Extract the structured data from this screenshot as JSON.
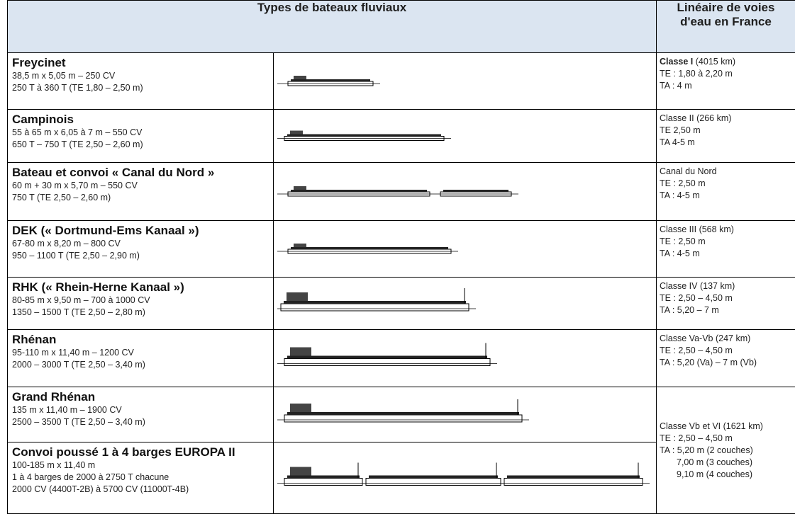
{
  "header": {
    "types": "Types de bateaux fluviaux",
    "lineaire": [
      "Linéaire de voies",
      "d'eau en France"
    ]
  },
  "rows": [
    {
      "name": "Freycinet",
      "lines": [
        "38,5 m x 5,05 m – 250 CV",
        "250 T à 360 T (TE 1,80 – 2,50 m)"
      ],
      "waterway": {
        "heading": "Classe I",
        "lines": [
          "(4015 km)",
          "TE : 1,80 à 2,20 m",
          "TA : 4 m"
        ]
      }
    },
    {
      "name": "Campinois",
      "lines": [
        "55 à 65 m x 6,05 à 7 m – 550 CV",
        "650 T – 750 T (TE 2,50 – 2,60 m)"
      ],
      "waterway": {
        "lines": [
          "Classe II (266 km)",
          "TE 2,50 m",
          "TA 4-5 m"
        ]
      }
    },
    {
      "name": "Bateau et convoi « Canal du Nord »",
      "lines": [
        "60 m + 30 m x 5,70 m – 550 CV",
        "750 T (TE 2,50 – 2,60 m)"
      ],
      "waterway": {
        "lines": [
          "Canal du Nord",
          "TE : 2,50 m",
          "TA : 4-5 m"
        ]
      }
    },
    {
      "name": "DEK (« Dortmund-Ems Kanaal »)",
      "lines": [
        "67-80 m x 8,20 m – 800 CV",
        "950 – 1100 T (TE 2,50 – 2,90 m)"
      ],
      "waterway": {
        "lines": [
          "Classe III (568 km)",
          "TE : 2,50 m",
          "TA : 4-5 m"
        ]
      }
    },
    {
      "name": "RHK (« Rhein-Herne Kanaal »)",
      "lines": [
        "80-85 m x 9,50 m – 700 à 1000 CV",
        "1350 – 1500 T (TE 2,50 – 2,80 m)"
      ],
      "waterway": {
        "lines": [
          "Classe IV (137 km)",
          "TE : 2,50 – 4,50 m",
          "TA : 5,20 – 7 m"
        ]
      }
    },
    {
      "name": "Rhénan",
      "lines": [
        "95-110 m x 11,40 m – 1200 CV",
        "2000 – 3000 T (TE 2,50 – 3,40 m)"
      ],
      "waterway": {
        "lines": [
          "Classe Va-Vb (247 km)",
          "TE : 2,50 – 4,50 m",
          "TA : 5,20 (Va) – 7 m (Vb)"
        ]
      }
    },
    {
      "name": "Grand Rhénan",
      "lines": [
        "135 m x 11,40 m – 1900 CV",
        "2500 – 3500 T (TE 2,50 – 3,40 m)"
      ],
      "waterway": {
        "lines": [
          "Classe Vb et VI (1621 km)",
          "TE : 2,50 – 4,50 m",
          "TA : 5,20 m (2 couches)",
          "7,00 m (3 couches)",
          "9,10 m (4 couches)"
        ]
      }
    },
    {
      "name": "Convoi poussé 1 à 4 barges EUROPA II",
      "lines": [
        "100-185 m x 11,40 m",
        "1 à 4 barges de 2000 à 2750 T chacune",
        "2000 CV (4400T-2B) à 5700 CV (11000T-4B)"
      ]
    }
  ]
}
